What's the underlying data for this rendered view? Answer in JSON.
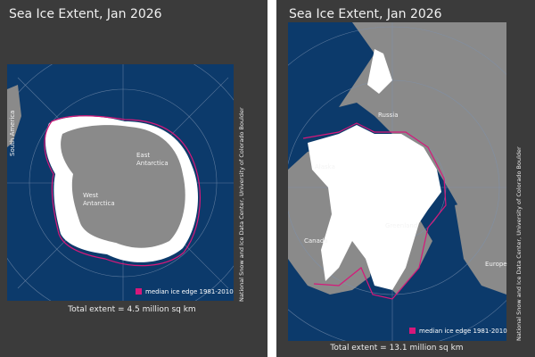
{
  "panels": [
    {
      "title": "Sea Ice Extent, Jan 2026",
      "labels": [
        {
          "lines": [
            "South America"
          ]
        },
        {
          "lines": [
            "East",
            "Antarctica"
          ]
        },
        {
          "lines": [
            "West",
            "Antarctica"
          ]
        }
      ],
      "legend": "median ice edge 1981-2010",
      "total": "Total extent = 4.5 million sq km",
      "credit": "National Snow and Ice Data Center, University of Colorado Boulder"
    },
    {
      "title": "Sea Ice Extent, Jan 2026",
      "labels": [
        {
          "lines": [
            "Russia"
          ]
        },
        {
          "lines": [
            "Alaska"
          ]
        },
        {
          "lines": [
            "Canada"
          ]
        },
        {
          "lines": [
            "Greenland"
          ]
        },
        {
          "lines": [
            "Europe"
          ]
        }
      ],
      "legend": "median ice edge 1981-2010",
      "total": "Total extent = 13.1 million sq km",
      "credit": "National Snow and Ice Data Center, University of Colorado Boulder"
    }
  ]
}
